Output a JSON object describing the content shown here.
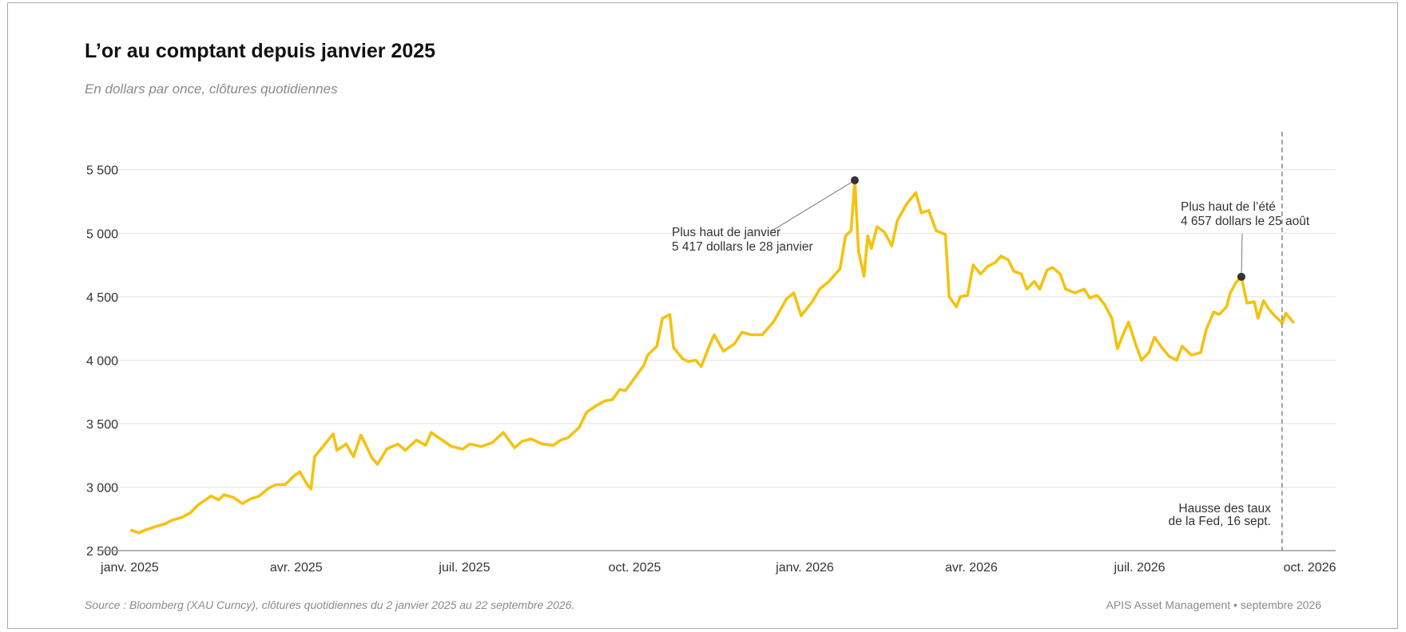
{
  "title": "L’or au comptant depuis janvier 2025",
  "subtitle": "En dollars par once, clôtures quotidiennes",
  "source": "Source : Bloomberg (XAU Curncy), clôtures quotidiennes du 2 janvier 2025 au 22 septembre 2026.",
  "credit": "APIS Asset Management • septembre 2026",
  "chart_data": {
    "type": "line",
    "title": "L’or au comptant depuis janvier 2025",
    "subtitle": "En dollars par once, clôtures quotidiennes",
    "xlabel": "",
    "ylabel": "",
    "ylim": [
      2500,
      5800
    ],
    "xlim": [
      "2024-12-15",
      "2026-10-15"
    ],
    "y_ticks": [
      2500,
      3000,
      3500,
      4000,
      4500,
      5000,
      5500
    ],
    "y_tick_labels": [
      "2 500",
      "3 000",
      "3 500",
      "4 000",
      "4 500",
      "5 000",
      "5 500"
    ],
    "x_ticks": [
      "2025-01-01",
      "2025-04-01",
      "2025-07-01",
      "2025-10-01",
      "2026-01-01",
      "2026-04-01",
      "2026-07-01",
      "2026-10-01"
    ],
    "x_tick_labels": [
      "janv. 2025",
      "avr. 2025",
      "juil. 2025",
      "oct. 2025",
      "janv. 2026",
      "avr. 2026",
      "juil. 2026",
      "oct. 2026"
    ],
    "grid": "horizontal",
    "line_color": "#F5C211",
    "series": [
      {
        "points": [
          [
            "2025-01-02",
            2660
          ],
          [
            "2025-01-06",
            2640
          ],
          [
            "2025-01-10",
            2665
          ],
          [
            "2025-01-15",
            2690
          ],
          [
            "2025-01-20",
            2710
          ],
          [
            "2025-01-24",
            2740
          ],
          [
            "2025-01-29",
            2760
          ],
          [
            "2025-02-03",
            2800
          ],
          [
            "2025-02-07",
            2860
          ],
          [
            "2025-02-11",
            2900
          ],
          [
            "2025-02-14",
            2930
          ],
          [
            "2025-02-18",
            2900
          ],
          [
            "2025-02-21",
            2940
          ],
          [
            "2025-02-26",
            2920
          ],
          [
            "2025-03-03",
            2870
          ],
          [
            "2025-03-07",
            2905
          ],
          [
            "2025-03-12",
            2930
          ],
          [
            "2025-03-17",
            2990
          ],
          [
            "2025-03-21",
            3020
          ],
          [
            "2025-03-26",
            3020
          ],
          [
            "2025-03-31",
            3090
          ],
          [
            "2025-04-03",
            3120
          ],
          [
            "2025-04-07",
            3020
          ],
          [
            "2025-04-09",
            2985
          ],
          [
            "2025-04-11",
            3240
          ],
          [
            "2025-04-16",
            3330
          ],
          [
            "2025-04-21",
            3420
          ],
          [
            "2025-04-23",
            3290
          ],
          [
            "2025-04-28",
            3340
          ],
          [
            "2025-05-02",
            3240
          ],
          [
            "2025-05-06",
            3410
          ],
          [
            "2025-05-12",
            3230
          ],
          [
            "2025-05-15",
            3180
          ],
          [
            "2025-05-20",
            3300
          ],
          [
            "2025-05-26",
            3340
          ],
          [
            "2025-05-30",
            3290
          ],
          [
            "2025-06-05",
            3370
          ],
          [
            "2025-06-10",
            3330
          ],
          [
            "2025-06-13",
            3430
          ],
          [
            "2025-06-18",
            3380
          ],
          [
            "2025-06-24",
            3320
          ],
          [
            "2025-06-30",
            3300
          ],
          [
            "2025-07-04",
            3340
          ],
          [
            "2025-07-10",
            3320
          ],
          [
            "2025-07-16",
            3350
          ],
          [
            "2025-07-22",
            3430
          ],
          [
            "2025-07-28",
            3310
          ],
          [
            "2025-08-01",
            3360
          ],
          [
            "2025-08-06",
            3380
          ],
          [
            "2025-08-12",
            3340
          ],
          [
            "2025-08-18",
            3330
          ],
          [
            "2025-08-22",
            3370
          ],
          [
            "2025-08-26",
            3390
          ],
          [
            "2025-09-01",
            3470
          ],
          [
            "2025-09-05",
            3590
          ],
          [
            "2025-09-10",
            3640
          ],
          [
            "2025-09-15",
            3680
          ],
          [
            "2025-09-19",
            3690
          ],
          [
            "2025-09-23",
            3770
          ],
          [
            "2025-09-26",
            3760
          ],
          [
            "2025-10-01",
            3860
          ],
          [
            "2025-10-06",
            3960
          ],
          [
            "2025-10-08",
            4040
          ],
          [
            "2025-10-13",
            4110
          ],
          [
            "2025-10-16",
            4330
          ],
          [
            "2025-10-20",
            4360
          ],
          [
            "2025-10-22",
            4100
          ],
          [
            "2025-10-27",
            4010
          ],
          [
            "2025-10-30",
            3990
          ],
          [
            "2025-11-03",
            4000
          ],
          [
            "2025-11-06",
            3950
          ],
          [
            "2025-11-10",
            4100
          ],
          [
            "2025-11-13",
            4200
          ],
          [
            "2025-11-18",
            4070
          ],
          [
            "2025-11-24",
            4130
          ],
          [
            "2025-11-28",
            4220
          ],
          [
            "2025-12-03",
            4200
          ],
          [
            "2025-12-09",
            4200
          ],
          [
            "2025-12-15",
            4300
          ],
          [
            "2025-12-22",
            4480
          ],
          [
            "2025-12-26",
            4530
          ],
          [
            "2025-12-30",
            4350
          ],
          [
            "2026-01-05",
            4460
          ],
          [
            "2026-01-09",
            4560
          ],
          [
            "2026-01-14",
            4620
          ],
          [
            "2026-01-20",
            4720
          ],
          [
            "2026-01-23",
            4980
          ],
          [
            "2026-01-26",
            5020
          ],
          [
            "2026-01-28",
            5417
          ],
          [
            "2026-01-30",
            4860
          ],
          [
            "2026-02-02",
            4660
          ],
          [
            "2026-02-04",
            4980
          ],
          [
            "2026-02-06",
            4880
          ],
          [
            "2026-02-09",
            5050
          ],
          [
            "2026-02-13",
            5010
          ],
          [
            "2026-02-17",
            4900
          ],
          [
            "2026-02-20",
            5100
          ],
          [
            "2026-02-25",
            5230
          ],
          [
            "2026-03-02",
            5320
          ],
          [
            "2026-03-05",
            5160
          ],
          [
            "2026-03-09",
            5180
          ],
          [
            "2026-03-13",
            5020
          ],
          [
            "2026-03-18",
            4990
          ],
          [
            "2026-03-20",
            4500
          ],
          [
            "2026-03-24",
            4420
          ],
          [
            "2026-03-26",
            4500
          ],
          [
            "2026-03-30",
            4510
          ],
          [
            "2026-04-02",
            4750
          ],
          [
            "2026-04-06",
            4680
          ],
          [
            "2026-04-10",
            4740
          ],
          [
            "2026-04-14",
            4770
          ],
          [
            "2026-04-17",
            4820
          ],
          [
            "2026-04-21",
            4790
          ],
          [
            "2026-04-24",
            4700
          ],
          [
            "2026-04-28",
            4680
          ],
          [
            "2026-05-01",
            4560
          ],
          [
            "2026-05-05",
            4620
          ],
          [
            "2026-05-08",
            4560
          ],
          [
            "2026-05-12",
            4710
          ],
          [
            "2026-05-15",
            4730
          ],
          [
            "2026-05-19",
            4680
          ],
          [
            "2026-05-22",
            4560
          ],
          [
            "2026-05-27",
            4530
          ],
          [
            "2026-06-01",
            4560
          ],
          [
            "2026-06-04",
            4490
          ],
          [
            "2026-06-08",
            4510
          ],
          [
            "2026-06-12",
            4440
          ],
          [
            "2026-06-16",
            4330
          ],
          [
            "2026-06-19",
            4090
          ],
          [
            "2026-06-22",
            4200
          ],
          [
            "2026-06-25",
            4300
          ],
          [
            "2026-06-29",
            4120
          ],
          [
            "2026-07-02",
            4000
          ],
          [
            "2026-07-06",
            4060
          ],
          [
            "2026-07-09",
            4180
          ],
          [
            "2026-07-13",
            4100
          ],
          [
            "2026-07-17",
            4030
          ],
          [
            "2026-07-21",
            4000
          ],
          [
            "2026-07-24",
            4110
          ],
          [
            "2026-07-29",
            4040
          ],
          [
            "2026-08-03",
            4060
          ],
          [
            "2026-08-06",
            4240
          ],
          [
            "2026-08-10",
            4380
          ],
          [
            "2026-08-13",
            4360
          ],
          [
            "2026-08-17",
            4420
          ],
          [
            "2026-08-19",
            4530
          ],
          [
            "2026-08-22",
            4610
          ],
          [
            "2026-08-25",
            4657
          ],
          [
            "2026-08-28",
            4450
          ],
          [
            "2026-09-01",
            4460
          ],
          [
            "2026-09-03",
            4330
          ],
          [
            "2026-09-06",
            4470
          ],
          [
            "2026-09-09",
            4400
          ],
          [
            "2026-09-12",
            4350
          ],
          [
            "2026-09-15",
            4310
          ],
          [
            "2026-09-16",
            4290
          ],
          [
            "2026-09-18",
            4370
          ],
          [
            "2026-09-22",
            4300
          ]
        ]
      }
    ],
    "highlighted_points": [
      {
        "date": "2026-01-28",
        "value": 5417,
        "label_lines": [
          "Plus haut de janvier",
          "5 417 dollars le 28 janvier"
        ]
      },
      {
        "date": "2026-08-25",
        "value": 4657,
        "label_lines": [
          "Plus haut de l’été",
          "4 657 dollars le 25 août"
        ]
      }
    ],
    "vertical_marker": {
      "date": "2026-09-16",
      "label_lines": [
        "Hausse des taux",
        "de la Fed, 16 sept."
      ]
    }
  }
}
